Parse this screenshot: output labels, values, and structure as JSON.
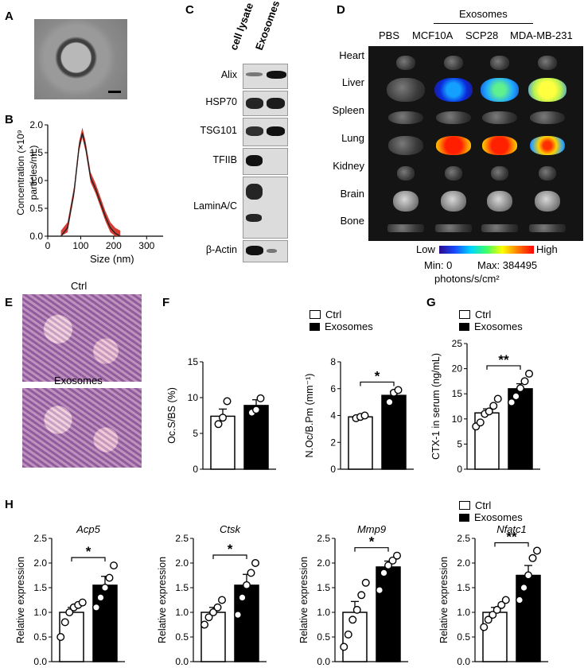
{
  "panels": {
    "a": "A",
    "b": "B",
    "c": "C",
    "d": "D",
    "e": "E",
    "f": "F",
    "g": "G",
    "h": "H"
  },
  "panel_b": {
    "ylabel_line1": "Concentration (×10⁹",
    "ylabel_line2": "particles/mL)",
    "xlabel": "Size (nm)"
  },
  "panel_c": {
    "col1": "cell lysate",
    "col2": "Exosomes",
    "proteins": [
      "Alix",
      "HSP70",
      "TSG101",
      "TFIIB",
      "LaminA/C",
      "β-Actin"
    ]
  },
  "panel_d": {
    "group_label": "Exosomes",
    "columns": [
      "PBS",
      "MCF10A",
      "SCP28",
      "MDA-MB-231"
    ],
    "organs": [
      "Heart",
      "Liver",
      "Spleen",
      "Lung",
      "Kidney",
      "Brain",
      "Bone"
    ],
    "scale_low": "Low",
    "scale_high": "High",
    "scale_min": "Min: 0",
    "scale_max": "Max: 384495",
    "scale_unit": "photons/s/cm²"
  },
  "panel_e": {
    "top_label": "Ctrl",
    "bottom_label": "Exosomes"
  },
  "legend": {
    "ctrl": "Ctrl",
    "exo": "Exosomes"
  },
  "colors": {
    "ctrl_fill": "#ffffff",
    "exo_fill": "#000000",
    "nta_curve": "#d0281e"
  },
  "chart_data": [
    {
      "id": "nta",
      "type": "line",
      "xlabel": "Size (nm)",
      "ylabel": "Concentration (×10⁹ particles/mL)",
      "xlim": [
        0,
        350
      ],
      "ylim": [
        0,
        2.0
      ],
      "xticks": [
        "0",
        "100",
        "200",
        "300"
      ],
      "yticks": [
        "0.0",
        "0.5",
        "1.0",
        "1.5",
        "2.0"
      ],
      "x": [
        40,
        60,
        80,
        95,
        105,
        115,
        130,
        145,
        160,
        175,
        190,
        205,
        220
      ],
      "y": [
        0,
        0.15,
        0.8,
        1.6,
        1.85,
        1.6,
        1.05,
        0.85,
        0.6,
        0.35,
        0.15,
        0.05,
        0
      ]
    },
    {
      "id": "ocs",
      "type": "bar",
      "ylabel": "Oc.S/BS (%)",
      "ylim": [
        0,
        15
      ],
      "yticks": [
        "0",
        "5",
        "10",
        "15"
      ],
      "categories": [
        "Ctrl",
        "Exosomes"
      ],
      "values": [
        7.4,
        8.9
      ],
      "errors": [
        1.0,
        0.8
      ],
      "points": [
        [
          6.3,
          7.2,
          9.5
        ],
        [
          7.9,
          8.3,
          9.9
        ]
      ],
      "significance": ""
    },
    {
      "id": "noc",
      "type": "bar",
      "ylabel": "N.Oc/B.Pm (mm⁻¹)",
      "ylim": [
        0,
        8
      ],
      "yticks": [
        "0",
        "2",
        "4",
        "6",
        "8"
      ],
      "categories": [
        "Ctrl",
        "Exosomes"
      ],
      "values": [
        3.9,
        5.5
      ],
      "errors": [
        0.1,
        0.3
      ],
      "points": [
        [
          3.8,
          3.9,
          4.0
        ],
        [
          5.0,
          5.7,
          5.9
        ]
      ],
      "significance": "*"
    },
    {
      "id": "ctx",
      "type": "bar",
      "ylabel": "CTX-1 in serum (ng/mL)",
      "ylim": [
        0,
        25
      ],
      "yticks": [
        "0",
        "5",
        "10",
        "15",
        "20",
        "25"
      ],
      "categories": [
        "Ctrl",
        "Exosomes"
      ],
      "values": [
        11.2,
        16.0
      ],
      "errors": [
        0.8,
        1.0
      ],
      "points": [
        [
          8.5,
          9.3,
          11.0,
          11.5,
          12.6,
          14.0
        ],
        [
          13.3,
          14.5,
          16.1,
          17.5,
          19.0
        ]
      ],
      "significance": "**"
    },
    {
      "id": "acp5",
      "type": "bar",
      "title": "Acp5",
      "ylabel": "Relative expression",
      "ylim": [
        0,
        2.5
      ],
      "yticks": [
        "0.0",
        "0.5",
        "1.0",
        "1.5",
        "2.0",
        "2.5"
      ],
      "categories": [
        "Ctrl",
        "Exosomes"
      ],
      "values": [
        1.0,
        1.55
      ],
      "errors": [
        0.1,
        0.18
      ],
      "points": [
        [
          0.5,
          0.8,
          1.0,
          1.1,
          1.15,
          1.2
        ],
        [
          1.1,
          1.3,
          1.5,
          1.7,
          1.95
        ]
      ],
      "significance": "*"
    },
    {
      "id": "ctsk",
      "type": "bar",
      "title": "Ctsk",
      "ylabel": "Relative expression",
      "ylim": [
        0,
        2.5
      ],
      "yticks": [
        "0.0",
        "0.5",
        "1.0",
        "1.5",
        "2.0",
        "2.5"
      ],
      "categories": [
        "Ctrl",
        "Exosomes"
      ],
      "values": [
        1.0,
        1.55
      ],
      "errors": [
        0.1,
        0.22
      ],
      "points": [
        [
          0.75,
          0.9,
          1.0,
          1.1,
          1.25
        ],
        [
          0.95,
          1.3,
          1.55,
          1.8,
          2.0
        ]
      ],
      "significance": "*"
    },
    {
      "id": "mmp9",
      "type": "bar",
      "title": "Mmp9",
      "ylabel": "Relative expression",
      "ylim": [
        0,
        2.5
      ],
      "yticks": [
        "0.0",
        "0.5",
        "1.0",
        "1.5",
        "2.0",
        "2.5"
      ],
      "categories": [
        "Ctrl",
        "Exosomes"
      ],
      "values": [
        1.0,
        1.92
      ],
      "errors": [
        0.22,
        0.12
      ],
      "points": [
        [
          0.3,
          0.55,
          0.85,
          1.05,
          1.35,
          1.6
        ],
        [
          1.45,
          1.8,
          1.95,
          2.05,
          2.15
        ]
      ],
      "significance": "*"
    },
    {
      "id": "nfatc1",
      "type": "bar",
      "title": "Nfatc1",
      "ylabel": "Relative expression",
      "ylim": [
        0,
        2.5
      ],
      "yticks": [
        "0.0",
        "0.5",
        "1.0",
        "1.5",
        "2.0",
        "2.5"
      ],
      "categories": [
        "Ctrl",
        "Exosomes"
      ],
      "values": [
        1.0,
        1.75
      ],
      "errors": [
        0.1,
        0.2
      ],
      "points": [
        [
          0.7,
          0.85,
          0.95,
          1.05,
          1.15,
          1.25
        ],
        [
          1.25,
          1.5,
          1.75,
          2.1,
          2.25
        ]
      ],
      "significance": "**"
    }
  ]
}
